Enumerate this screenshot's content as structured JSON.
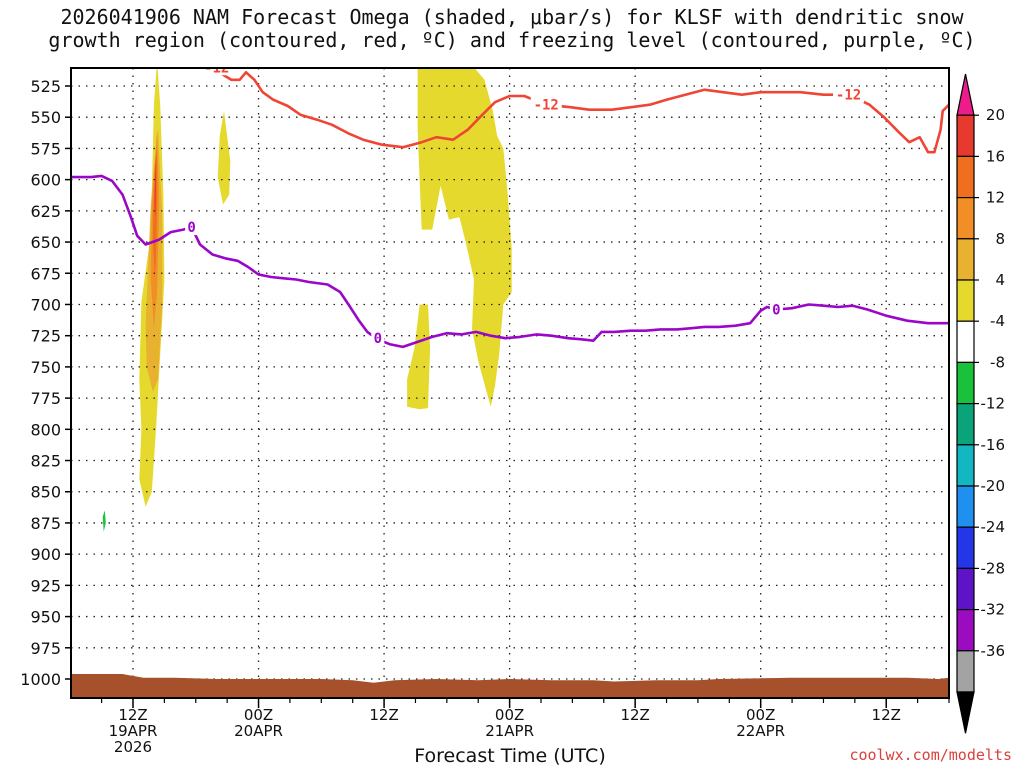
{
  "chart_data": {
    "type": "heatmap",
    "title": [
      "2026041906 NAM Forecast Omega (shaded, μbar/s) for KLSF with dendritic snow",
      "growth region (contoured, red, ºC) and freezing level (contoured, purple, ºC)"
    ],
    "xlabel": "Forecast Time (UTC)",
    "credit": "coolwx.com/modelts",
    "x_ticks": [
      {
        "hour": 12,
        "label": [
          "12Z",
          "19APR",
          "2026"
        ]
      },
      {
        "hour": 24,
        "label": [
          "00Z",
          "20APR"
        ]
      },
      {
        "hour": 36,
        "label": [
          "12Z"
        ]
      },
      {
        "hour": 48,
        "label": [
          "00Z",
          "21APR"
        ]
      },
      {
        "hour": 60,
        "label": [
          "12Z"
        ]
      },
      {
        "hour": 72,
        "label": [
          "00Z",
          "22APR"
        ]
      },
      {
        "hour": 84,
        "label": [
          "12Z"
        ]
      }
    ],
    "x_range_hours": [
      6,
      90
    ],
    "y_range_mb": [
      1000,
      510
    ],
    "y_ticks": [
      525,
      550,
      575,
      600,
      625,
      650,
      675,
      700,
      725,
      750,
      775,
      800,
      825,
      850,
      875,
      900,
      925,
      950,
      975,
      1000
    ],
    "colorbar": {
      "labels": [
        "20",
        "16",
        "12",
        "8",
        "4",
        "-4",
        "-8",
        "-12",
        "-16",
        "-20",
        "-24",
        "-28",
        "-32",
        "-36"
      ],
      "bins": [
        {
          "color": "#ee1b8a"
        },
        {
          "color": "#e8392f"
        },
        {
          "color": "#ef6f1e"
        },
        {
          "color": "#f18e25"
        },
        {
          "color": "#e8b230"
        },
        {
          "color": "#e6d92d"
        },
        {
          "color": "#ffffff"
        },
        {
          "color": "#19c23a"
        },
        {
          "color": "#0aa37a"
        },
        {
          "color": "#11b8c2"
        },
        {
          "color": "#1f8ff0"
        },
        {
          "color": "#2437e8"
        },
        {
          "color": "#5f13c9"
        },
        {
          "color": "#9b0cc1"
        },
        {
          "color": "#a3a3a3"
        },
        {
          "color": "#000000"
        }
      ]
    },
    "series": [
      {
        "name": "freezing level (0 ºC)",
        "color": "#9a07c9",
        "label": "0",
        "label_points": [
          [
            17.6,
            638
          ],
          [
            35.4,
            727
          ],
          [
            73.5,
            704
          ]
        ],
        "points": [
          [
            6,
            598
          ],
          [
            8,
            598
          ],
          [
            9,
            597
          ],
          [
            10,
            601
          ],
          [
            11,
            612
          ],
          [
            11.8,
            630
          ],
          [
            12.4,
            645
          ],
          [
            13.2,
            652
          ],
          [
            14.5,
            648
          ],
          [
            15.6,
            642
          ],
          [
            16.8,
            640
          ],
          [
            17.6,
            638
          ],
          [
            18.4,
            652
          ],
          [
            19.6,
            660
          ],
          [
            20.8,
            663
          ],
          [
            22,
            665
          ],
          [
            23,
            670
          ],
          [
            24,
            676
          ],
          [
            25.2,
            678
          ],
          [
            26.4,
            679
          ],
          [
            27.6,
            680
          ],
          [
            28.8,
            682
          ],
          [
            30.6,
            684
          ],
          [
            31.8,
            690
          ],
          [
            32.6,
            700
          ],
          [
            33.6,
            713
          ],
          [
            34.4,
            722
          ],
          [
            35.4,
            728
          ],
          [
            36.6,
            732
          ],
          [
            37.8,
            734
          ],
          [
            39.2,
            730
          ],
          [
            40.6,
            726
          ],
          [
            42,
            723
          ],
          [
            43.4,
            724
          ],
          [
            44.8,
            722
          ],
          [
            46.2,
            725
          ],
          [
            47.6,
            727
          ],
          [
            49,
            726
          ],
          [
            50.6,
            724
          ],
          [
            52,
            725
          ],
          [
            53.6,
            727
          ],
          [
            55,
            728
          ],
          [
            56,
            729
          ],
          [
            56.8,
            722
          ],
          [
            58,
            722
          ],
          [
            59.6,
            721
          ],
          [
            61,
            721
          ],
          [
            62.4,
            720
          ],
          [
            64,
            720
          ],
          [
            65.4,
            719
          ],
          [
            66.6,
            718
          ],
          [
            68,
            718
          ],
          [
            69.6,
            717
          ],
          [
            71,
            715
          ],
          [
            72,
            705
          ],
          [
            72.6,
            702
          ],
          [
            73.5,
            704
          ],
          [
            75,
            703
          ],
          [
            76.6,
            700
          ],
          [
            78,
            701
          ],
          [
            79.4,
            702
          ],
          [
            80.8,
            701
          ],
          [
            82.2,
            704
          ],
          [
            84,
            709
          ],
          [
            86,
            713
          ],
          [
            88,
            715
          ],
          [
            90,
            715
          ]
        ]
      },
      {
        "name": "dendritic snow growth region (-12 ºC)",
        "color": "#ef4535",
        "label": "-12",
        "label_points": [
          [
            20,
            510
          ],
          [
            51.5,
            540
          ],
          [
            80.4,
            532
          ]
        ],
        "points": [
          [
            18.8,
            506
          ],
          [
            19.6,
            511
          ],
          [
            20.6,
            516
          ],
          [
            21.4,
            520
          ],
          [
            22.2,
            520
          ],
          [
            22.8,
            514
          ],
          [
            23.6,
            520
          ],
          [
            24.4,
            530
          ],
          [
            25.4,
            536
          ],
          [
            26.8,
            541
          ],
          [
            28,
            548
          ],
          [
            29.6,
            552
          ],
          [
            31,
            556
          ],
          [
            32.6,
            563
          ],
          [
            34,
            568
          ],
          [
            35.8,
            572
          ],
          [
            37.8,
            574
          ],
          [
            39.6,
            570
          ],
          [
            41,
            566
          ],
          [
            42.6,
            568
          ],
          [
            44,
            560
          ],
          [
            45.4,
            548
          ],
          [
            46.6,
            538
          ],
          [
            48,
            533
          ],
          [
            49.4,
            533
          ],
          [
            51.5,
            540
          ],
          [
            53.8,
            542
          ],
          [
            55.6,
            544
          ],
          [
            57.8,
            544
          ],
          [
            59.6,
            542
          ],
          [
            61.4,
            540
          ],
          [
            63,
            536
          ],
          [
            64.8,
            532
          ],
          [
            66.6,
            528
          ],
          [
            68.4,
            530
          ],
          [
            70.2,
            532
          ],
          [
            72,
            530
          ],
          [
            73.8,
            530
          ],
          [
            75.8,
            530
          ],
          [
            78,
            532
          ],
          [
            80.4,
            532
          ],
          [
            82.4,
            540
          ],
          [
            83.8,
            550
          ],
          [
            85.2,
            562
          ],
          [
            86.2,
            570
          ],
          [
            87.2,
            566
          ],
          [
            88,
            578
          ],
          [
            88.6,
            578
          ],
          [
            89.2,
            560
          ],
          [
            89.4,
            545
          ],
          [
            90,
            540
          ]
        ]
      }
    ],
    "omega_regions": [
      {
        "bin": 5,
        "outline": [
          [
            12.8,
            698
          ],
          [
            13.6,
            650
          ],
          [
            13.8,
            610
          ],
          [
            14.0,
            540
          ],
          [
            14.3,
            505
          ],
          [
            14.6,
            540
          ],
          [
            14.9,
            610
          ],
          [
            15.0,
            680
          ],
          [
            14.6,
            740
          ],
          [
            14.2,
            800
          ],
          [
            13.8,
            850
          ],
          [
            13.2,
            862
          ],
          [
            12.6,
            840
          ],
          [
            12.8,
            800
          ],
          [
            12.6,
            760
          ]
        ]
      },
      {
        "bin": 4,
        "outline": [
          [
            13.2,
            715
          ],
          [
            13.4,
            680
          ],
          [
            13.7,
            620
          ],
          [
            14.1,
            580
          ],
          [
            14.4,
            560
          ],
          [
            14.8,
            630
          ],
          [
            14.8,
            700
          ],
          [
            14.4,
            760
          ],
          [
            13.9,
            770
          ],
          [
            13.3,
            750
          ]
        ]
      },
      {
        "bin": 3,
        "outline": [
          [
            13.7,
            680
          ],
          [
            13.8,
            620
          ],
          [
            14.1,
            585
          ],
          [
            14.3,
            560
          ],
          [
            14.5,
            620
          ],
          [
            14.3,
            690
          ],
          [
            14.0,
            720
          ]
        ]
      },
      {
        "bin": 2,
        "outline": [
          [
            13.9,
            650
          ],
          [
            14.0,
            610
          ],
          [
            14.1,
            590
          ],
          [
            14.3,
            575
          ],
          [
            14.3,
            620
          ],
          [
            14.2,
            660
          ],
          [
            14.1,
            680
          ]
        ]
      },
      {
        "bin": 1,
        "outline": [
          [
            14.05,
            620
          ],
          [
            14.1,
            600
          ],
          [
            14.2,
            580
          ],
          [
            14.2,
            600
          ],
          [
            14.15,
            630
          ]
        ]
      },
      {
        "bin": 5,
        "outline": [
          [
            20.3,
            565
          ],
          [
            20.7,
            545
          ],
          [
            21.3,
            585
          ],
          [
            21.2,
            612
          ],
          [
            20.6,
            620
          ],
          [
            20.1,
            598
          ]
        ]
      },
      {
        "bin": 5,
        "outline": [
          [
            39.2,
            510
          ],
          [
            44.6,
            510
          ],
          [
            45.6,
            520
          ],
          [
            46.4,
            545
          ],
          [
            46.8,
            565
          ],
          [
            47.4,
            575
          ],
          [
            47.8,
            610
          ],
          [
            48.2,
            655
          ],
          [
            48.2,
            690
          ],
          [
            47.4,
            700
          ],
          [
            47.0,
            740
          ],
          [
            46.6,
            765
          ],
          [
            46.2,
            782
          ],
          [
            45.8,
            770
          ],
          [
            45.0,
            745
          ],
          [
            44.4,
            720
          ],
          [
            44.6,
            680
          ],
          [
            43.8,
            650
          ],
          [
            43.2,
            630
          ],
          [
            42.2,
            632
          ],
          [
            41.4,
            605
          ],
          [
            40.6,
            640
          ],
          [
            39.6,
            640
          ],
          [
            39.4,
            600
          ],
          [
            39.2,
            560
          ]
        ]
      },
      {
        "bin": 5,
        "outline": [
          [
            38.2,
            760
          ],
          [
            38.9,
            735
          ],
          [
            39.4,
            700
          ],
          [
            40.2,
            700
          ],
          [
            40.4,
            735
          ],
          [
            40.2,
            783
          ],
          [
            39.4,
            784
          ],
          [
            38.2,
            782
          ]
        ]
      },
      {
        "bin": 7,
        "outline": [
          [
            9.1,
            870
          ],
          [
            9.3,
            865
          ],
          [
            9.4,
            875
          ],
          [
            9.2,
            882
          ]
        ]
      }
    ],
    "terrain": {
      "color": "#a6502c",
      "points": [
        [
          6,
          996
        ],
        [
          8,
          996
        ],
        [
          11,
          996
        ],
        [
          13,
          999
        ],
        [
          16,
          999
        ],
        [
          20,
          1000
        ],
        [
          30,
          1000
        ],
        [
          33,
          1001
        ],
        [
          35,
          1003
        ],
        [
          37,
          1001
        ],
        [
          41,
          1000
        ],
        [
          45,
          1001
        ],
        [
          48,
          1000
        ],
        [
          52,
          1001
        ],
        [
          56,
          1001
        ],
        [
          58,
          1002
        ],
        [
          62,
          1001
        ],
        [
          66,
          1001
        ],
        [
          68,
          1000
        ],
        [
          75,
          999
        ],
        [
          80,
          999
        ],
        [
          86,
          999
        ],
        [
          89,
          1000
        ],
        [
          90,
          999
        ]
      ]
    }
  }
}
